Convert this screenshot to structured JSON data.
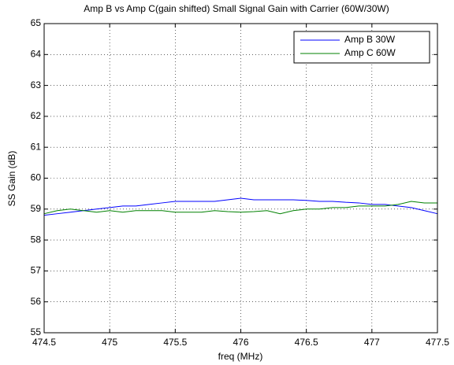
{
  "chart_data": {
    "type": "line",
    "title": "Amp B vs Amp C(gain shifted) Small Signal Gain with Carrier (60W/30W)",
    "x_label": "freq (MHz)",
    "y_label": "SS Gain (dB)",
    "x": [
      474.5,
      474.6,
      474.7,
      474.8,
      474.9,
      475.0,
      475.1,
      475.2,
      475.3,
      475.4,
      475.5,
      475.6,
      475.7,
      475.8,
      475.9,
      476.0,
      476.1,
      476.2,
      476.3,
      476.4,
      476.5,
      476.6,
      476.7,
      476.8,
      476.9,
      477.0,
      477.1,
      477.2,
      477.3,
      477.4,
      477.5
    ],
    "series": [
      {
        "name": "Amp B 30W",
        "color": "#0000ff",
        "values": [
          58.8,
          58.85,
          58.9,
          58.95,
          59.0,
          59.05,
          59.1,
          59.1,
          59.15,
          59.2,
          59.25,
          59.25,
          59.25,
          59.25,
          59.3,
          59.35,
          59.3,
          59.3,
          59.3,
          59.3,
          59.28,
          59.25,
          59.25,
          59.22,
          59.2,
          59.15,
          59.15,
          59.1,
          59.05,
          58.95,
          58.85
        ]
      },
      {
        "name": "Amp C 60W",
        "color": "#008000",
        "values": [
          58.85,
          58.95,
          59.0,
          58.95,
          58.9,
          58.95,
          58.9,
          58.95,
          58.95,
          58.95,
          58.9,
          58.9,
          58.9,
          58.95,
          58.92,
          58.9,
          58.92,
          58.95,
          58.85,
          58.95,
          59.0,
          59.0,
          59.05,
          59.05,
          59.1,
          59.1,
          59.1,
          59.15,
          59.25,
          59.2,
          59.2
        ]
      }
    ],
    "xlim": [
      474.5,
      477.5
    ],
    "xticks": [
      474.5,
      475,
      475.5,
      476,
      476.5,
      477,
      477.5
    ],
    "ylim": [
      55,
      65
    ],
    "yticks": [
      55,
      56,
      57,
      58,
      59,
      60,
      61,
      62,
      63,
      64,
      65
    ],
    "grid": true,
    "legend": "upper right"
  }
}
